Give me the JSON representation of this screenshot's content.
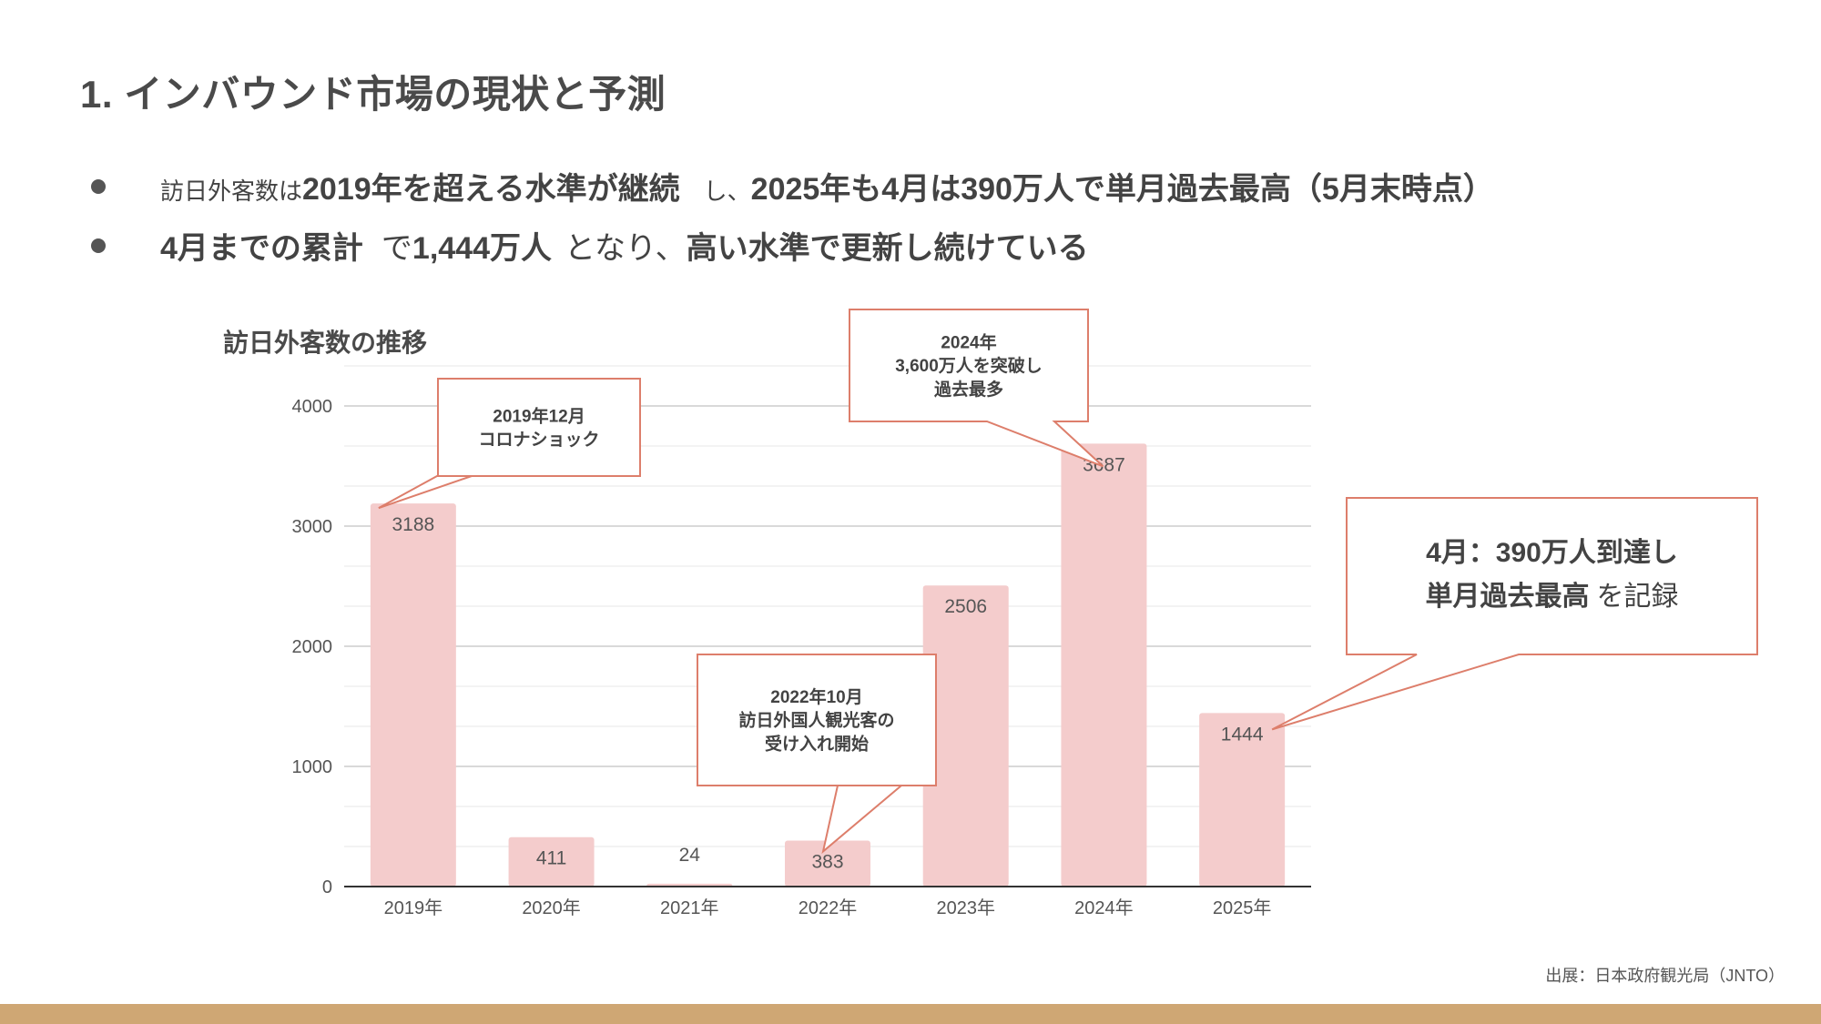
{
  "slide": {
    "title": "1. インバウンド市場の現状と予測",
    "bullet1": {
      "p1": "訪日外客数は",
      "p2": "2019年を超える水準が継続",
      "p3": "し、",
      "p4": "2025年も4月は390万人で単月過去最高（5月末時点）"
    },
    "bullet2": {
      "p1": "4月までの累計",
      "p2": "で",
      "p3": "1,444万人",
      "p4": "となり、",
      "p5": "高い水準で更新し続けている"
    },
    "source": "出展：日本政府観光局（JNTO）"
  },
  "chart_data": {
    "type": "bar",
    "title": "訪日外客数の推移",
    "categories": [
      "2019年",
      "2020年",
      "2021年",
      "2022年",
      "2023年",
      "2024年",
      "2025年"
    ],
    "values": [
      3188,
      411,
      24,
      383,
      2506,
      3687,
      1444
    ],
    "ylim": [
      0,
      4000
    ],
    "yticks": [
      0,
      1000,
      2000,
      3000,
      4000
    ],
    "grid": true,
    "bar_color": "#f4cccc",
    "callout_color": "#dd7e6b",
    "annotations": [
      {
        "lines": [
          "2019年12月",
          "コロナショック"
        ],
        "target_index": 0
      },
      {
        "lines": [
          "2022年10月",
          "訪日外国人観光客の",
          "受け入れ開始"
        ],
        "target_index": 3
      },
      {
        "lines": [
          "2024年",
          "3,600万人を突破し",
          "過去最多"
        ],
        "target_index": 5
      },
      {
        "bold": "4月：390万人到達し",
        "bold2": "単月過去最高",
        "normal2": "を記録",
        "target_index": 6
      }
    ]
  }
}
